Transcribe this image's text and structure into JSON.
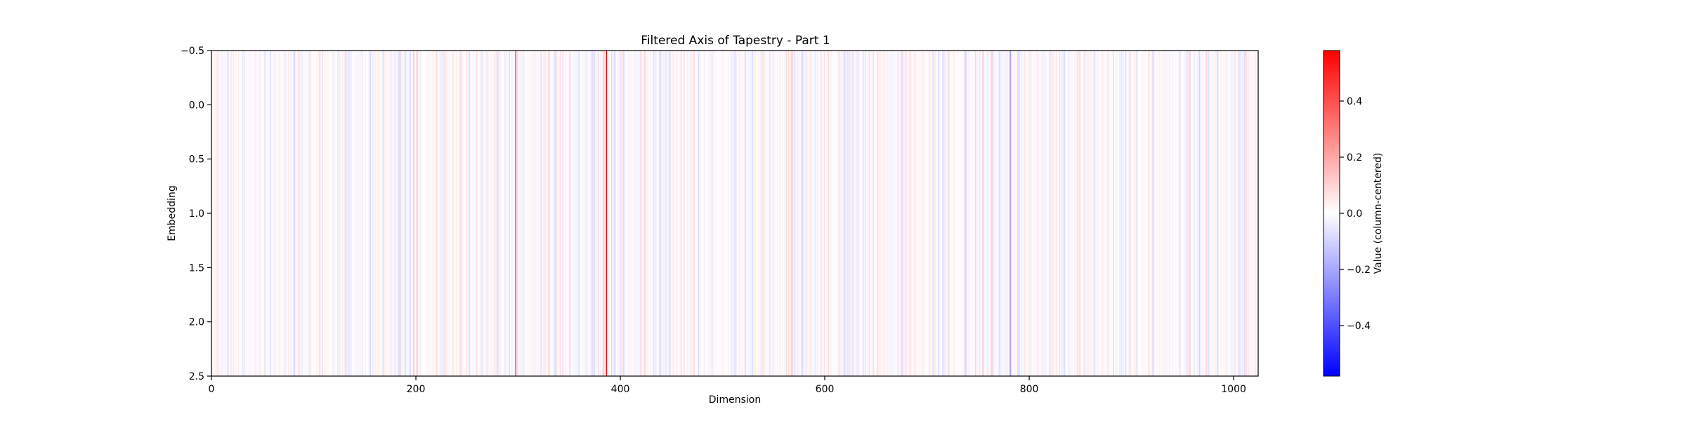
{
  "chart_data": {
    "type": "heatmap",
    "title": "Filtered Axis of Tapestry - Part 1",
    "xlabel": "Dimension",
    "ylabel": "Embedding",
    "xlim": [
      0,
      1024
    ],
    "ylim": [
      2.5,
      -0.5
    ],
    "n_columns": 1024,
    "n_rows": 3,
    "xticks": [
      {
        "value": 0,
        "label": "0"
      },
      {
        "value": 200,
        "label": "200"
      },
      {
        "value": 400,
        "label": "400"
      },
      {
        "value": 600,
        "label": "600"
      },
      {
        "value": 800,
        "label": "800"
      },
      {
        "value": 1000,
        "label": "1000"
      }
    ],
    "yticks": [
      {
        "value": -0.5,
        "label": "−0.5"
      },
      {
        "value": 0.0,
        "label": "0.0"
      },
      {
        "value": 0.5,
        "label": "0.5"
      },
      {
        "value": 1.0,
        "label": "1.0"
      },
      {
        "value": 1.5,
        "label": "1.5"
      },
      {
        "value": 2.0,
        "label": "2.0"
      },
      {
        "value": 2.5,
        "label": "2.5"
      }
    ],
    "colormap": {
      "name": "bwr",
      "low": "#0000ff",
      "mid": "#ffffff",
      "high": "#ff0000"
    },
    "value_range": [
      -0.58,
      0.58
    ],
    "colorbar": {
      "label": "Value (column-centered)",
      "ticks": [
        {
          "value": 0.4,
          "label": "0.4"
        },
        {
          "value": 0.2,
          "label": "0.2"
        },
        {
          "value": 0.0,
          "label": "0.0"
        },
        {
          "value": -0.2,
          "label": "−0.2"
        },
        {
          "value": -0.4,
          "label": "−0.4"
        }
      ]
    },
    "notable_columns": [
      {
        "column": 297,
        "value": -0.28
      },
      {
        "column": 386,
        "value": 0.58
      },
      {
        "column": 781,
        "value": -0.22
      }
    ],
    "background_amplitude": 0.06,
    "grid": false
  }
}
